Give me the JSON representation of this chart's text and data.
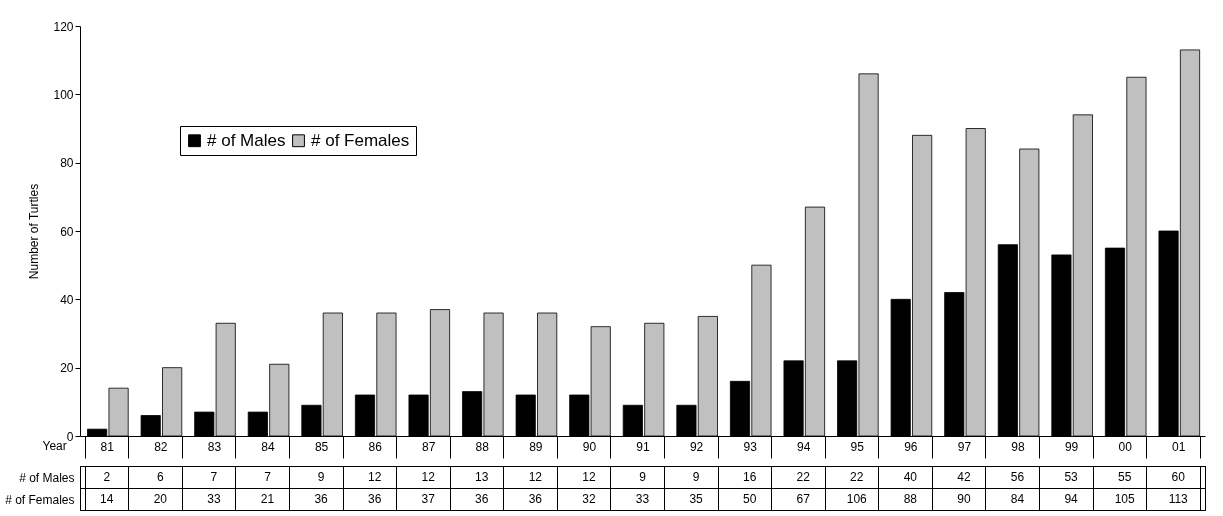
{
  "chart_data": {
    "type": "bar",
    "ylabel": "Number of Turtles",
    "xlabel": "Year",
    "categories": [
      "81",
      "82",
      "83",
      "84",
      "85",
      "86",
      "87",
      "88",
      "89",
      "90",
      "91",
      "92",
      "93",
      "94",
      "95",
      "96",
      "97",
      "98",
      "99",
      "00",
      "01"
    ],
    "series": [
      {
        "name": "# of Males",
        "color": "#000000",
        "values": [
          2,
          6,
          7,
          7,
          9,
          12,
          12,
          13,
          12,
          12,
          9,
          9,
          16,
          22,
          22,
          40,
          42,
          56,
          53,
          55,
          60
        ]
      },
      {
        "name": "# of Females",
        "color": "#c0c0c0",
        "values": [
          14,
          20,
          33,
          21,
          36,
          36,
          37,
          36,
          36,
          32,
          33,
          35,
          50,
          67,
          106,
          88,
          90,
          84,
          94,
          105,
          113
        ]
      }
    ],
    "ylim": [
      0,
      120
    ],
    "yticks": [
      0,
      20,
      40,
      60,
      80,
      100,
      120
    ],
    "grid": false,
    "legend": "top left",
    "data_labels": true
  }
}
